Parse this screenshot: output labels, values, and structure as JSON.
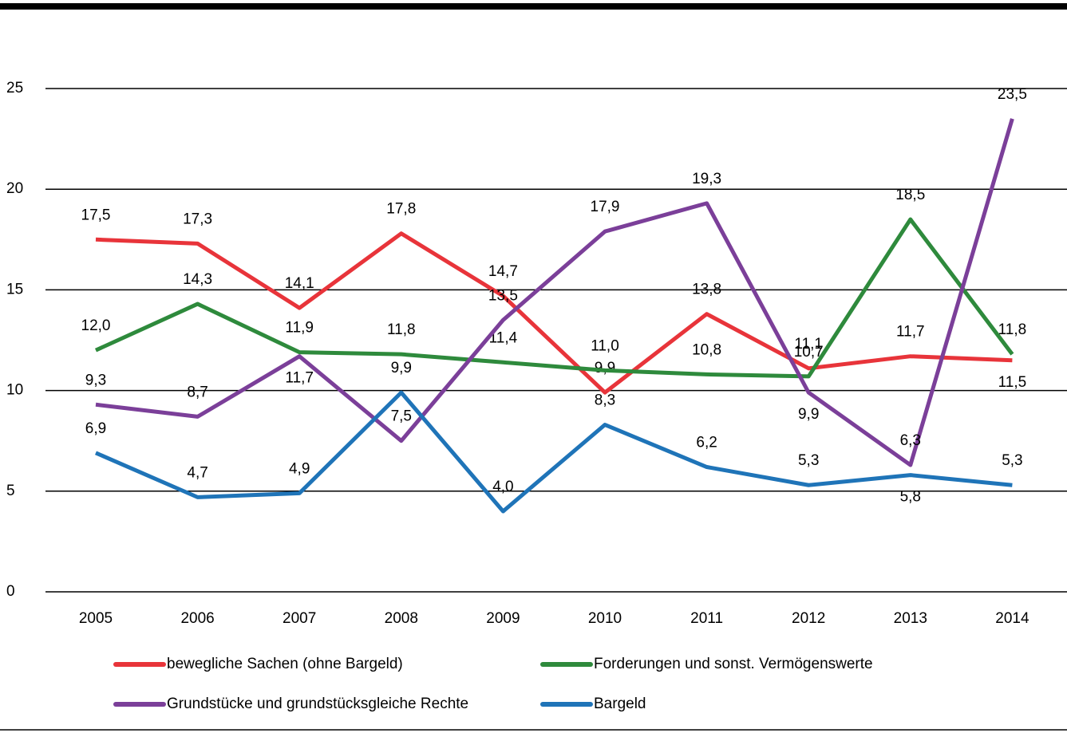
{
  "chart_data": {
    "type": "line",
    "categories": [
      "2005",
      "2006",
      "2007",
      "2008",
      "2009",
      "2010",
      "2011",
      "2012",
      "2013",
      "2014"
    ],
    "series": [
      {
        "name": "bewegliche Sachen (ohne Bargeld)",
        "color": "#e8343a",
        "values": [
          17.5,
          17.3,
          14.1,
          17.8,
          14.7,
          9.9,
          13.8,
          11.1,
          11.7,
          11.5
        ],
        "value_labels": [
          "17,5",
          "17,3",
          "14,1",
          "17,8",
          "14,7",
          "9,9",
          "13,8",
          "11,1",
          "11,7",
          "11,5"
        ]
      },
      {
        "name": "Forderungen und sonst. Vermögenswerte",
        "color": "#2e8a3c",
        "values": [
          12.0,
          14.3,
          11.9,
          11.8,
          11.4,
          11.0,
          10.8,
          10.7,
          18.5,
          11.8
        ],
        "value_labels": [
          "12,0",
          "14,3",
          "11,9",
          "11,8",
          "11,4",
          "11,0",
          "10,8",
          "10,7",
          "18,5",
          "11,8"
        ]
      },
      {
        "name": "Grundstücke und grundstücksgleiche Rechte",
        "color": "#7b3f99",
        "values": [
          9.3,
          8.7,
          11.7,
          7.5,
          13.5,
          17.9,
          19.3,
          9.9,
          6.3,
          23.5
        ],
        "value_labels": [
          "9,3",
          "8,7",
          "11,7",
          "7,5",
          "13,5",
          "17,9",
          "19,3",
          "9,9",
          "6,3",
          "23,5"
        ]
      },
      {
        "name": "Bargeld",
        "color": "#1f74b8",
        "values": [
          6.9,
          4.7,
          4.9,
          9.9,
          4.0,
          8.3,
          6.2,
          5.3,
          5.8,
          5.3
        ],
        "value_labels": [
          "6,9",
          "4,7",
          "4,9",
          "9,9",
          "4,0",
          "8,3",
          "6,2",
          "5,3",
          "5,8",
          "5,3"
        ]
      }
    ],
    "ylim": [
      0,
      25
    ],
    "yticks": [
      0,
      5,
      10,
      15,
      20,
      25
    ],
    "grid": true,
    "legend": "bottom"
  }
}
